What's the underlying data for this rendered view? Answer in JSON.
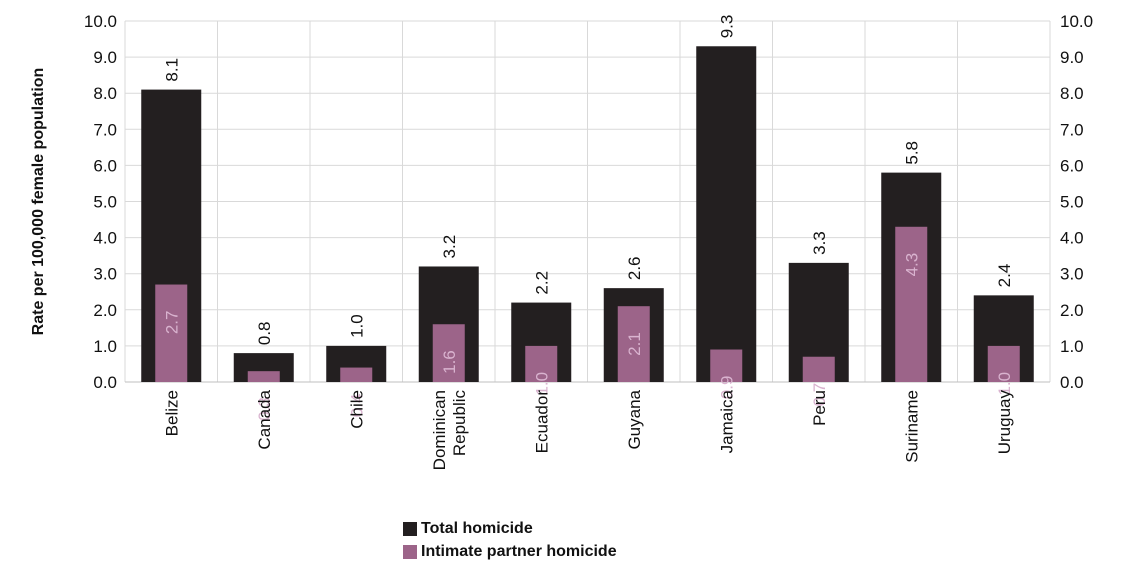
{
  "chart_data": {
    "type": "bar",
    "categories": [
      "Belize",
      "Canada",
      "Chile",
      "Dominican Republic",
      "Ecuador",
      "Guyana",
      "Jamaica",
      "Peru",
      "Suriname",
      "Uruguay"
    ],
    "category_lines": [
      [
        "Belize"
      ],
      [
        "Canada"
      ],
      [
        "Chile"
      ],
      [
        "Dominican",
        "Republic"
      ],
      [
        "Ecuador"
      ],
      [
        "Guyana"
      ],
      [
        "Jamaica"
      ],
      [
        "Peru"
      ],
      [
        "Suriname"
      ],
      [
        "Uruguay"
      ]
    ],
    "series": [
      {
        "name": "Total homicide",
        "color": "#231f20",
        "values": [
          8.1,
          0.8,
          1.0,
          3.2,
          2.2,
          2.6,
          9.3,
          3.3,
          5.8,
          2.4
        ]
      },
      {
        "name": "Intimate partner homicide",
        "color": "#9c6489",
        "values": [
          2.7,
          0.3,
          0.4,
          1.6,
          1.0,
          2.1,
          0.9,
          0.7,
          4.3,
          1.0
        ]
      }
    ],
    "ylabel": "Rate per 100,000 female population",
    "ylim": [
      0,
      10
    ],
    "yticks": [
      "0.0",
      "1.0",
      "2.0",
      "3.0",
      "4.0",
      "5.0",
      "6.0",
      "7.0",
      "8.0",
      "9.0",
      "10.0"
    ],
    "secondary_axis": true,
    "grid": true,
    "legend_position": "bottom-center"
  }
}
